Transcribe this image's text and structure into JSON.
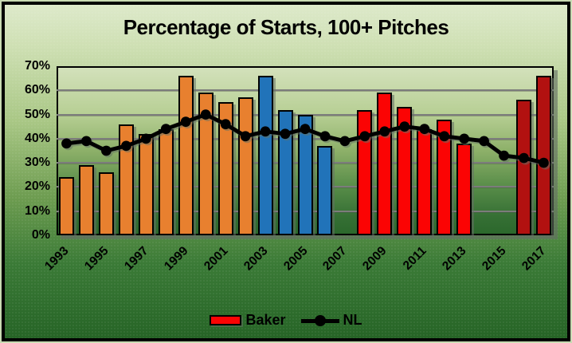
{
  "chart_data": {
    "type": "bar+line",
    "title": "Percentage of Starts, 100+ Pitches",
    "years": [
      1993,
      1994,
      1995,
      1996,
      1997,
      1998,
      1999,
      2000,
      2001,
      2002,
      2003,
      2004,
      2005,
      2006,
      2007,
      2008,
      2009,
      2010,
      2011,
      2012,
      2013,
      2014,
      2015,
      2016,
      2017
    ],
    "x_tick_years": [
      1993,
      1995,
      1997,
      1999,
      2001,
      2003,
      2005,
      2007,
      2009,
      2011,
      2013,
      2015,
      2017
    ],
    "y_ticks_percent": [
      0,
      10,
      20,
      30,
      40,
      50,
      60,
      70
    ],
    "y_tick_suffix": "%",
    "ylim": [
      0,
      70
    ],
    "grid": true,
    "legend_position": "bottom",
    "series": [
      {
        "name": "Baker",
        "type": "bar",
        "values": [
          24,
          29,
          26,
          46,
          42,
          44,
          66,
          59,
          55,
          57,
          66,
          52,
          50,
          37,
          null,
          52,
          59,
          53,
          44,
          48,
          38,
          null,
          null,
          56,
          66
        ]
      },
      {
        "name": "NL",
        "type": "line",
        "color": "#000000",
        "values": [
          38,
          39,
          35,
          37,
          40,
          44,
          47,
          50,
          46,
          41,
          43,
          42,
          44,
          41,
          39,
          41,
          43,
          45,
          44,
          41,
          40,
          39,
          33,
          32,
          30
        ]
      }
    ],
    "bar_color_eras": [
      {
        "start": 1993,
        "end": 2002,
        "color": "#E8802F"
      },
      {
        "start": 2003,
        "end": 2006,
        "color": "#2173B9"
      },
      {
        "start": 2008,
        "end": 2013,
        "color": "#FB0404"
      },
      {
        "start": 2016,
        "end": 2017,
        "color": "#B21110"
      }
    ],
    "legend": [
      {
        "label": "Baker",
        "marker": "bar",
        "color": "#FB0404"
      },
      {
        "label": "NL",
        "marker": "line-dot",
        "color": "#000000"
      }
    ]
  },
  "colors": {
    "gridline": "#7C7C7C",
    "plot_border": "#000000",
    "text": "#000000",
    "background_top": "#DDE9CA",
    "background_bottom": "#266426"
  }
}
